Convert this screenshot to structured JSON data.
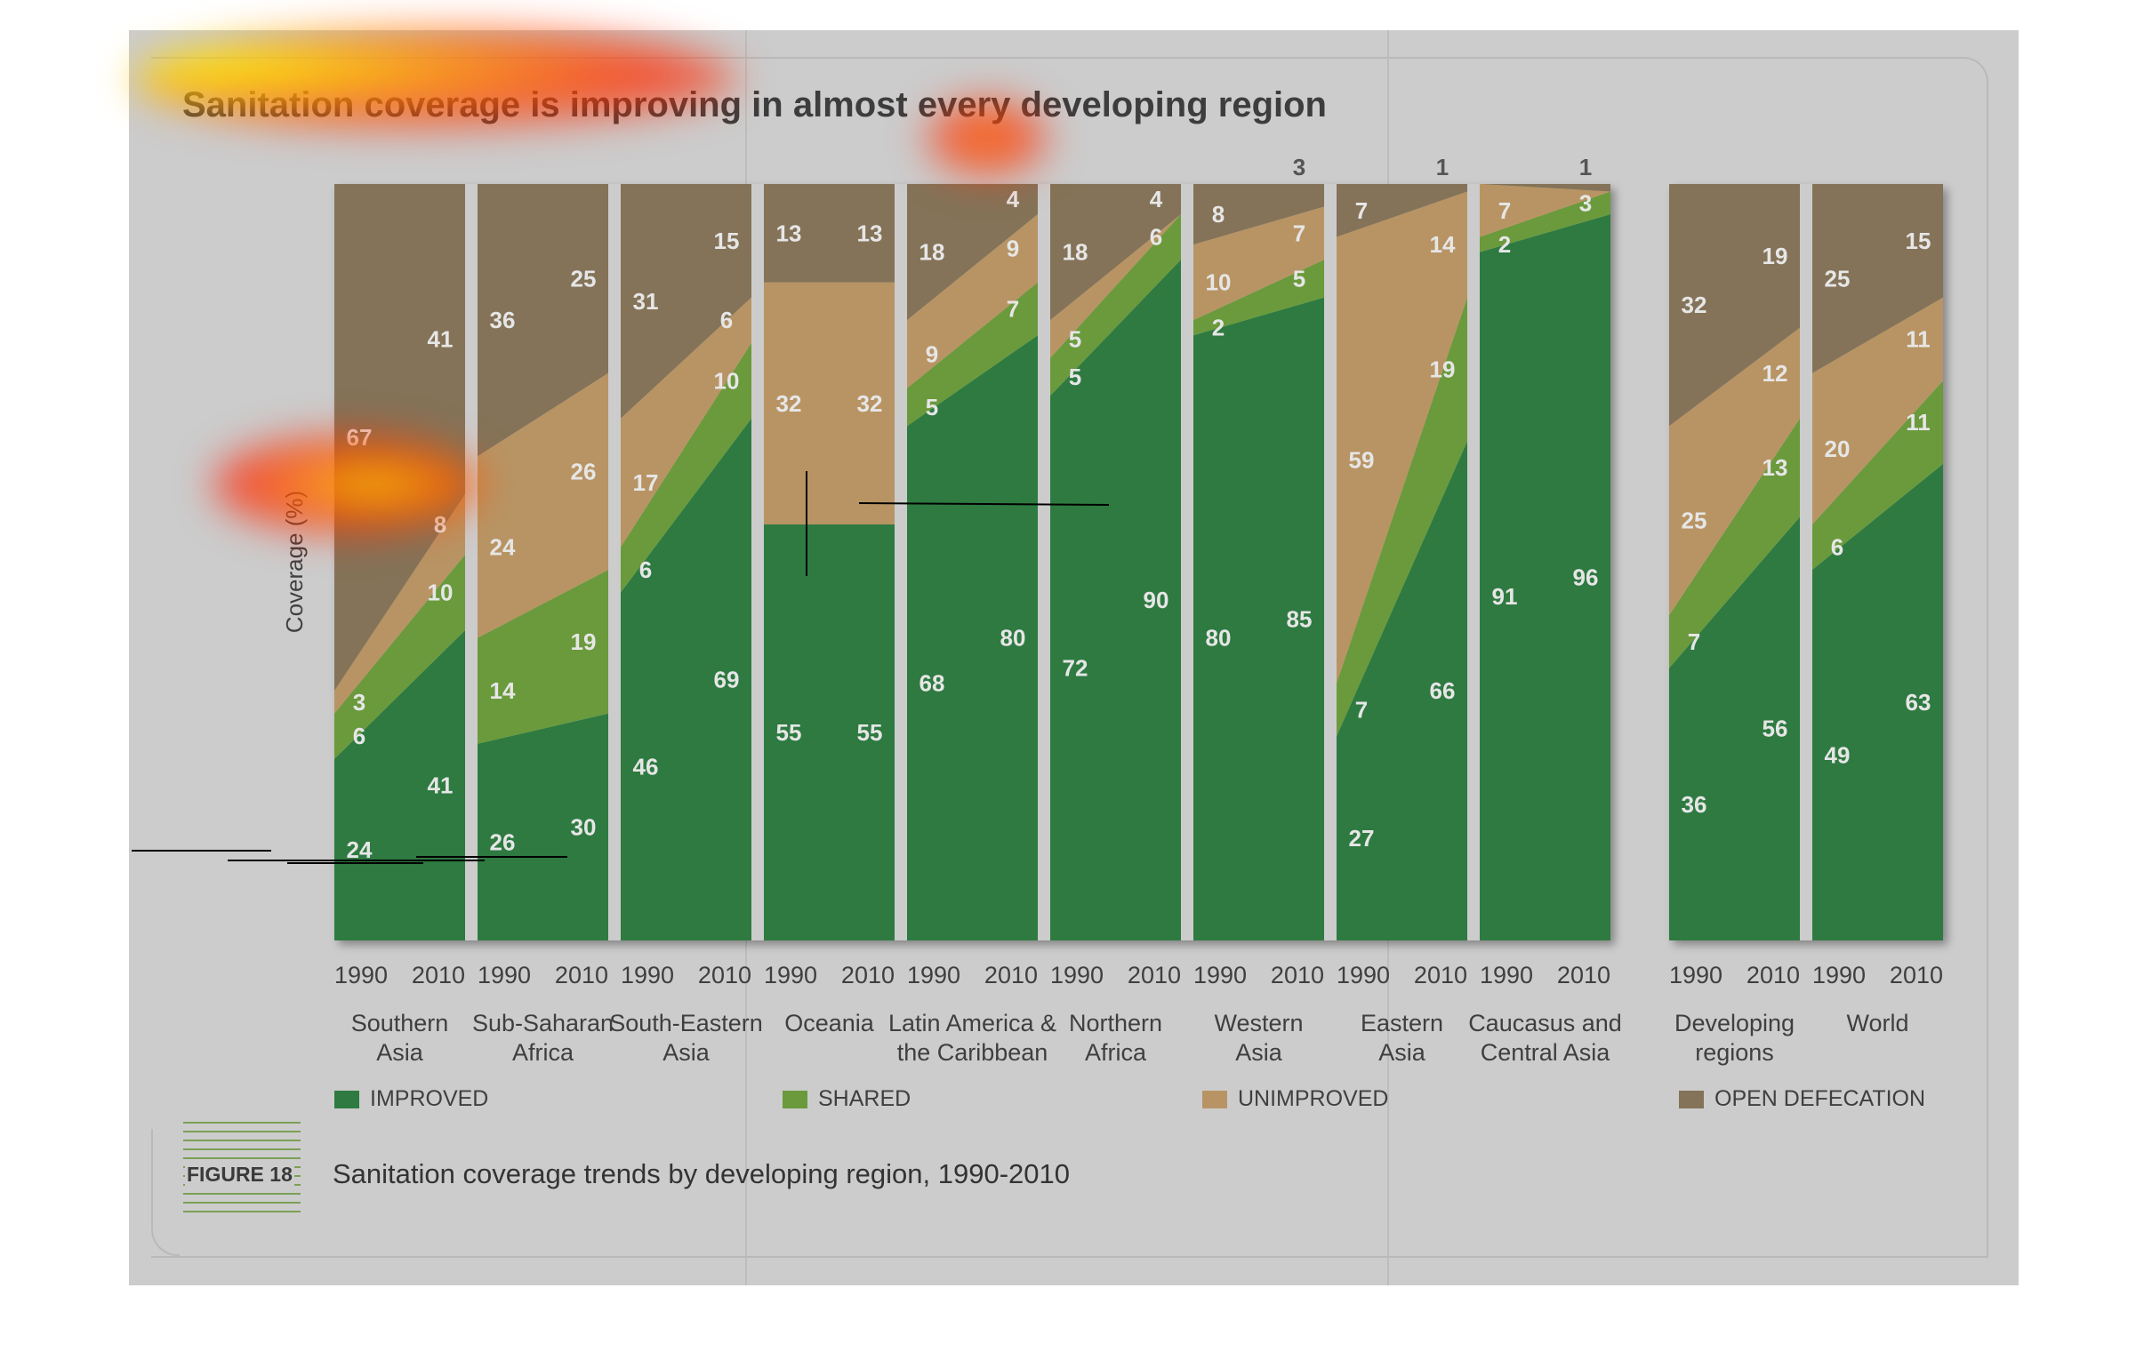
{
  "title": "Sanitation coverage is improving in almost every developing region",
  "figure_label": "FIGURE 18",
  "caption": "Sanitation coverage trends by developing region, 1990-2010",
  "colors": {
    "improved": "#2e7a41",
    "shared": "#6a9a3c",
    "unimproved": "#b89464",
    "open_defecation": "#847358",
    "panel": "#cccccc",
    "value_label": "#e6e6e6"
  },
  "legend": [
    {
      "key": "improved",
      "label": "IMPROVED"
    },
    {
      "key": "shared",
      "label": "SHARED"
    },
    {
      "key": "unimproved",
      "label": "UNIMPROVED"
    },
    {
      "key": "open_defecation",
      "label": "OPEN DEFECATION"
    }
  ],
  "chart_data": {
    "type": "area",
    "title": "Sanitation coverage is improving in almost every developing region",
    "ylabel": "Coverage (%)",
    "ylim": [
      0,
      100
    ],
    "stack_order": [
      "Improved",
      "Shared",
      "Unimproved",
      "Open defecation"
    ],
    "years": [
      "1990",
      "2010"
    ],
    "regions": [
      {
        "name": "Southern\nAsia",
        "group": 1,
        "improved": [
          24,
          41
        ],
        "shared": [
          6,
          10
        ],
        "unimproved": [
          3,
          8
        ],
        "open_defecation": [
          67,
          41
        ]
      },
      {
        "name": "Sub-Saharan\nAfrica",
        "group": 1,
        "improved": [
          26,
          30
        ],
        "shared": [
          14,
          19
        ],
        "unimproved": [
          24,
          26
        ],
        "open_defecation": [
          36,
          25
        ]
      },
      {
        "name": "South-Eastern\nAsia",
        "group": 1,
        "improved": [
          46,
          69
        ],
        "shared": [
          6,
          10
        ],
        "unimproved": [
          17,
          6
        ],
        "open_defecation": [
          31,
          15
        ]
      },
      {
        "name": "Oceania",
        "group": 1,
        "improved": [
          55,
          55
        ],
        "shared": [
          0,
          0
        ],
        "unimproved": [
          32,
          32
        ],
        "open_defecation": [
          13,
          13
        ]
      },
      {
        "name": "Latin America &\nthe Caribbean",
        "group": 1,
        "improved": [
          68,
          80
        ],
        "shared": [
          5,
          7
        ],
        "unimproved": [
          9,
          9
        ],
        "open_defecation": [
          18,
          4
        ]
      },
      {
        "name": "Northern\nAfrica",
        "group": 1,
        "improved": [
          72,
          90
        ],
        "shared": [
          5,
          6
        ],
        "unimproved": [
          5,
          0
        ],
        "open_defecation": [
          18,
          4
        ]
      },
      {
        "name": "Western\nAsia",
        "group": 1,
        "improved": [
          80,
          85
        ],
        "shared": [
          2,
          5
        ],
        "unimproved": [
          10,
          7
        ],
        "open_defecation": [
          8,
          3
        ]
      },
      {
        "name": "Eastern\nAsia",
        "group": 1,
        "improved": [
          27,
          66
        ],
        "shared": [
          7,
          19
        ],
        "unimproved": [
          59,
          14
        ],
        "open_defecation": [
          7,
          1
        ]
      },
      {
        "name": "Caucasus and\nCentral Asia",
        "group": 1,
        "improved": [
          91,
          96
        ],
        "shared": [
          2,
          3
        ],
        "unimproved": [
          7,
          0
        ],
        "open_defecation": [
          0,
          1
        ]
      },
      {
        "name": "Developing\nregions",
        "group": 2,
        "improved": [
          36,
          56
        ],
        "shared": [
          7,
          13
        ],
        "unimproved": [
          25,
          12
        ],
        "open_defecation": [
          32,
          19
        ]
      },
      {
        "name": "World",
        "group": 2,
        "improved": [
          49,
          63
        ],
        "shared": [
          6,
          11
        ],
        "unimproved": [
          20,
          11
        ],
        "open_defecation": [
          25,
          15
        ]
      }
    ],
    "grid": false,
    "legend_position": "bottom"
  }
}
